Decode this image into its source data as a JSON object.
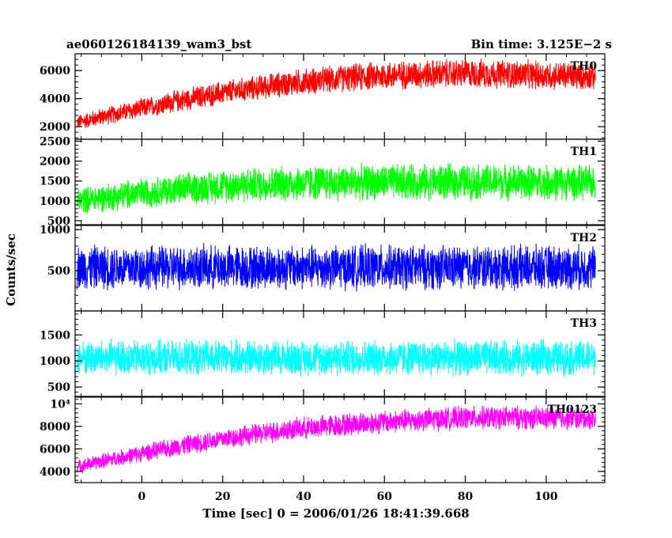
{
  "chart_data": {
    "type": "line",
    "title_left": "ae060126184139_wam3_bst",
    "title_right": "Bin time: 3.125E−2 s",
    "xlabel": "Time [sec] 0 = 2006/01/26 18:41:39.668",
    "ylabel": "Counts/sec",
    "xlim": [
      -16.5,
      114.5
    ],
    "x_data_range": [
      -16,
      112.2
    ],
    "x_ticks": [
      0,
      20,
      40,
      60,
      80,
      100
    ],
    "x_tick_labels": [
      "0",
      "20",
      "40",
      "60",
      "80",
      "100"
    ],
    "grid": false,
    "legend": "none",
    "panels": [
      {
        "name": "TH0",
        "color": "#ff0000",
        "ylim": [
          1100,
          7200
        ],
        "y_ticks": [
          2000,
          4000,
          6000
        ],
        "y_tick_labels": [
          "2000",
          "4000",
          "6000"
        ],
        "envelope": {
          "x": [
            -16,
            -10,
            0,
            10,
            20,
            30,
            40,
            50,
            60,
            70,
            80,
            90,
            100,
            112
          ],
          "mean": [
            2300,
            2700,
            3300,
            3900,
            4400,
            4850,
            5200,
            5450,
            5650,
            5750,
            5800,
            5750,
            5650,
            5600
          ],
          "half_spread": [
            600,
            700,
            800,
            900,
            950,
            1000,
            1050,
            1100,
            1150,
            1150,
            1150,
            1150,
            1150,
            1100
          ]
        }
      },
      {
        "name": "TH1",
        "color": "#00ff00",
        "ylim": [
          400,
          2550
        ],
        "y_ticks": [
          500,
          1000,
          1500,
          2000,
          2500
        ],
        "y_tick_labels": [
          "500",
          "1000",
          "1500",
          "2000",
          "2500"
        ],
        "envelope": {
          "x": [
            -16,
            0,
            20,
            40,
            60,
            80,
            100,
            112
          ],
          "mean": [
            1000,
            1200,
            1380,
            1450,
            1470,
            1480,
            1460,
            1450
          ],
          "half_spread": [
            380,
            420,
            470,
            500,
            500,
            500,
            500,
            480
          ]
        }
      },
      {
        "name": "TH2",
        "color": "#0000ff",
        "ylim": [
          10,
          1050
        ],
        "y_ticks": [
          500,
          1000
        ],
        "y_tick_labels": [
          "500",
          "1000"
        ],
        "envelope": {
          "x": [
            -16,
            112
          ],
          "mean": [
            540,
            540
          ],
          "half_spread": [
            300,
            300
          ]
        }
      },
      {
        "name": "TH3",
        "color": "#00ffff",
        "ylim": [
          320,
          1960
        ],
        "y_ticks": [
          500,
          1000,
          1500
        ],
        "y_tick_labels": [
          "500",
          "1000",
          "1500"
        ],
        "envelope": {
          "x": [
            -16,
            112
          ],
          "mean": [
            1060,
            1060
          ],
          "half_spread": [
            380,
            380
          ]
        }
      },
      {
        "name": "TH0123",
        "color": "#ff00ff",
        "ylim": [
          3000,
          10600
        ],
        "y_ticks": [
          4000,
          6000,
          8000,
          10000
        ],
        "y_tick_labels": [
          "4000",
          "6000",
          "8000",
          "10⁴"
        ],
        "envelope": {
          "x": [
            -16,
            -10,
            0,
            10,
            20,
            30,
            40,
            50,
            60,
            70,
            80,
            90,
            100,
            112
          ],
          "mean": [
            4400,
            4900,
            5600,
            6300,
            6900,
            7400,
            7850,
            8150,
            8400,
            8600,
            8750,
            8800,
            8750,
            8700
          ],
          "half_spread": [
            700,
            750,
            850,
            950,
            1000,
            1050,
            1100,
            1150,
            1150,
            1150,
            1150,
            1150,
            1150,
            1100
          ]
        }
      }
    ]
  }
}
